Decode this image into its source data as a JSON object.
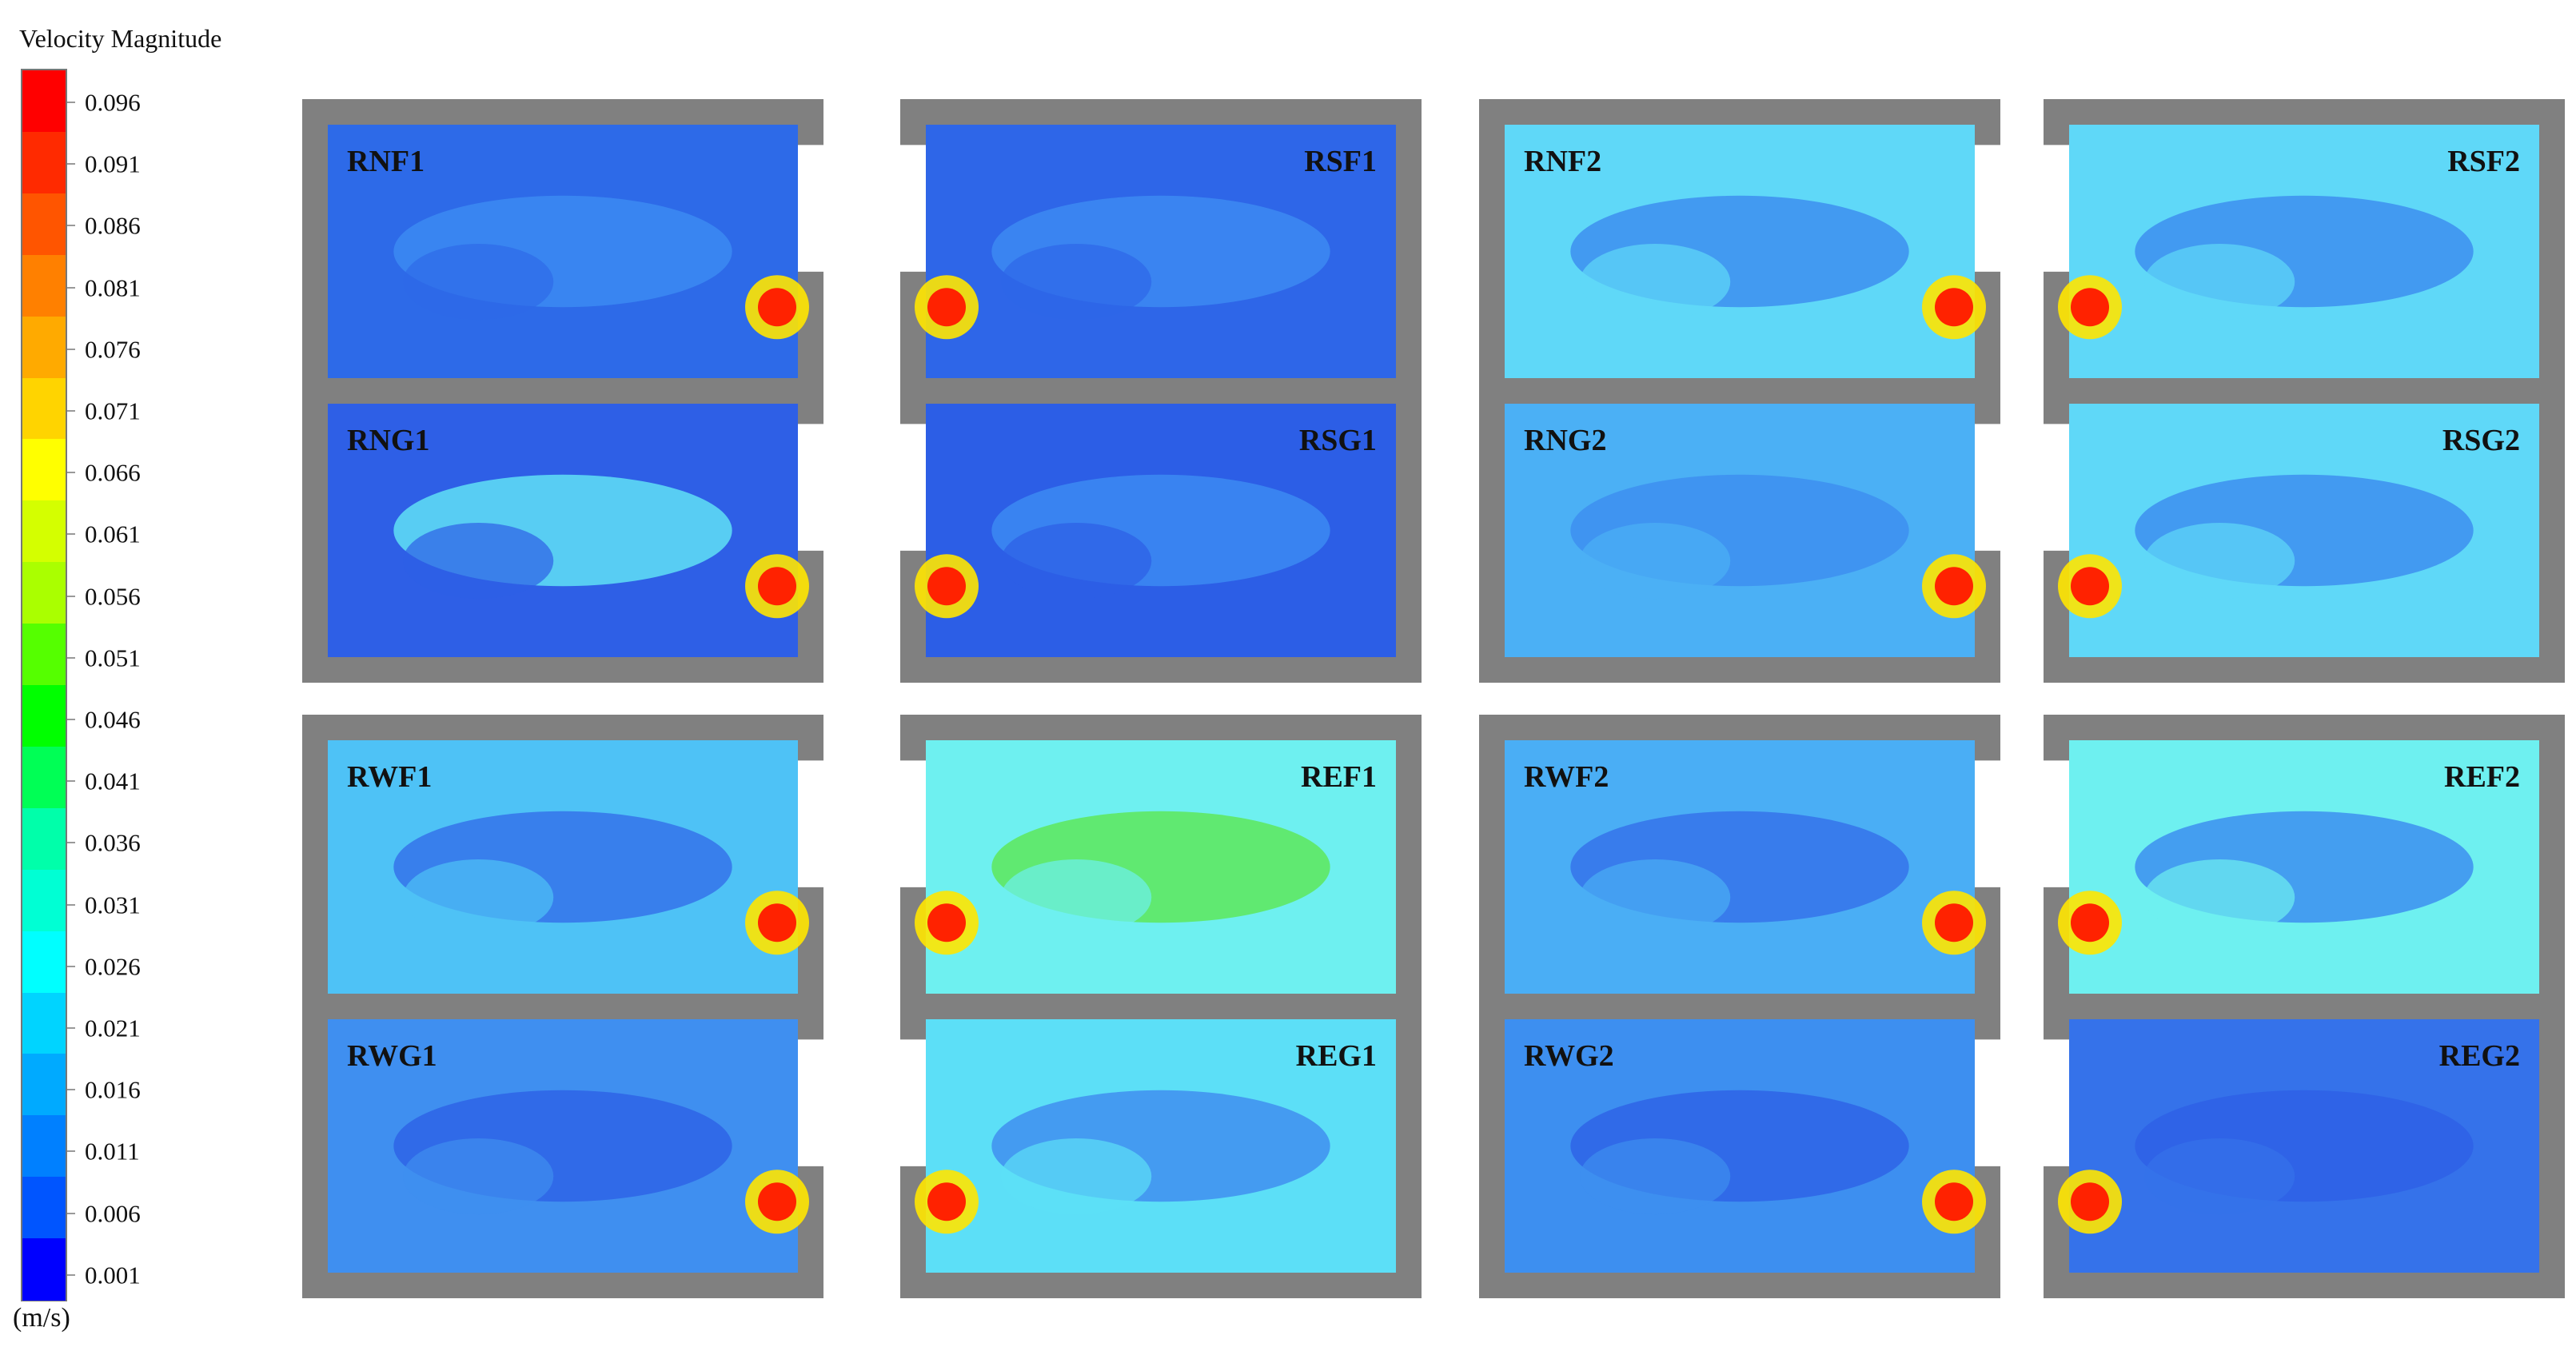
{
  "legend": {
    "title": "Velocity Magnitude",
    "unit": "(m/s)",
    "ticks": [
      "0.096",
      "0.091",
      "0.086",
      "0.081",
      "0.076",
      "0.071",
      "0.066",
      "0.061",
      "0.056",
      "0.051",
      "0.046",
      "0.041",
      "0.036",
      "0.031",
      "0.026",
      "0.021",
      "0.016",
      "0.011",
      "0.006",
      "0.001"
    ],
    "colors": [
      "#ff0000",
      "#ff2a00",
      "#ff5500",
      "#ff8000",
      "#ffaa00",
      "#ffd400",
      "#ffff00",
      "#d4ff00",
      "#aaff00",
      "#55ff00",
      "#00ff00",
      "#00ff55",
      "#00ffaa",
      "#00ffd4",
      "#00ffff",
      "#00d4ff",
      "#00aaff",
      "#0080ff",
      "#0055ff",
      "#0000ff"
    ]
  },
  "rooms": [
    {
      "label": "RNF1",
      "base": "#2d6ae8",
      "accent": "#3c8af2",
      "inlet": "right"
    },
    {
      "label": "RNG1",
      "base": "#2e5fe6",
      "accent": "#5fe0f5",
      "inlet": "right"
    },
    {
      "label": "RSF1",
      "base": "#2e66e8",
      "accent": "#3c8af2",
      "inlet": "left"
    },
    {
      "label": "RSG1",
      "base": "#2c5ee6",
      "accent": "#3c8af2",
      "inlet": "left"
    },
    {
      "label": "RNF2",
      "base": "#5fd8f8",
      "accent": "#3d8ff0",
      "inlet": "right"
    },
    {
      "label": "RNG2",
      "base": "#4bb0f5",
      "accent": "#3d8ff0",
      "inlet": "right"
    },
    {
      "label": "RSF2",
      "base": "#5fd8f8",
      "accent": "#3d8ff0",
      "inlet": "left"
    },
    {
      "label": "RSG2",
      "base": "#5fd8f8",
      "accent": "#3d8ff0",
      "inlet": "left"
    },
    {
      "label": "RWF1",
      "base": "#4ec2f6",
      "accent": "#3573ea",
      "inlet": "right"
    },
    {
      "label": "RWG1",
      "base": "#3f8ff0",
      "accent": "#2e64e6",
      "inlet": "right"
    },
    {
      "label": "REF1",
      "base": "#6ef0f0",
      "accent": "#5ee85a",
      "inlet": "left"
    },
    {
      "label": "REG1",
      "base": "#5cdff7",
      "accent": "#3f8ff0",
      "inlet": "left"
    },
    {
      "label": "RWF2",
      "base": "#4aaef5",
      "accent": "#3573ea",
      "inlet": "right"
    },
    {
      "label": "RWG2",
      "base": "#3d8ff0",
      "accent": "#2e64e6",
      "inlet": "right"
    },
    {
      "label": "REF2",
      "base": "#6ef0f0",
      "accent": "#3d8ff0",
      "inlet": "left"
    },
    {
      "label": "REG2",
      "base": "#3572ea",
      "accent": "#2e60e6",
      "inlet": "left"
    }
  ]
}
